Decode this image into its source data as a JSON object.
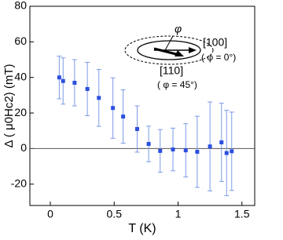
{
  "chart_data": {
    "type": "scatter",
    "xlabel": "T (K)",
    "ylabel": "Δ ( μ0Hc2) (mT)",
    "x": [
      0.07,
      0.1,
      0.19,
      0.29,
      0.38,
      0.49,
      0.57,
      0.68,
      0.77,
      0.86,
      0.96,
      1.06,
      1.15,
      1.25,
      1.34,
      1.38,
      1.42
    ],
    "values": [
      40,
      38,
      37,
      33.5,
      28.5,
      22.8,
      18,
      11,
      2.6,
      -1.3,
      -0.5,
      -1,
      -1.8,
      1.2,
      3.5,
      -2.5,
      -1.5
    ],
    "errors": [
      12,
      13,
      13,
      15,
      16,
      17,
      15,
      13,
      10,
      12,
      12,
      15,
      20,
      25,
      22,
      24,
      22
    ],
    "color": "#2b4fe0",
    "error_color": "#7b9ae6",
    "hline": 0,
    "xlim": [
      -0.16,
      1.6
    ],
    "xticks": [
      0,
      0.5,
      1,
      1.5
    ],
    "ylim": [
      -32,
      80
    ],
    "yticks": [
      -20,
      0,
      20,
      40,
      60,
      80
    ],
    "annotations": [
      "φ",
      "[100]",
      "( φ = 0°)",
      "[110]",
      "( φ = 45°)"
    ]
  }
}
